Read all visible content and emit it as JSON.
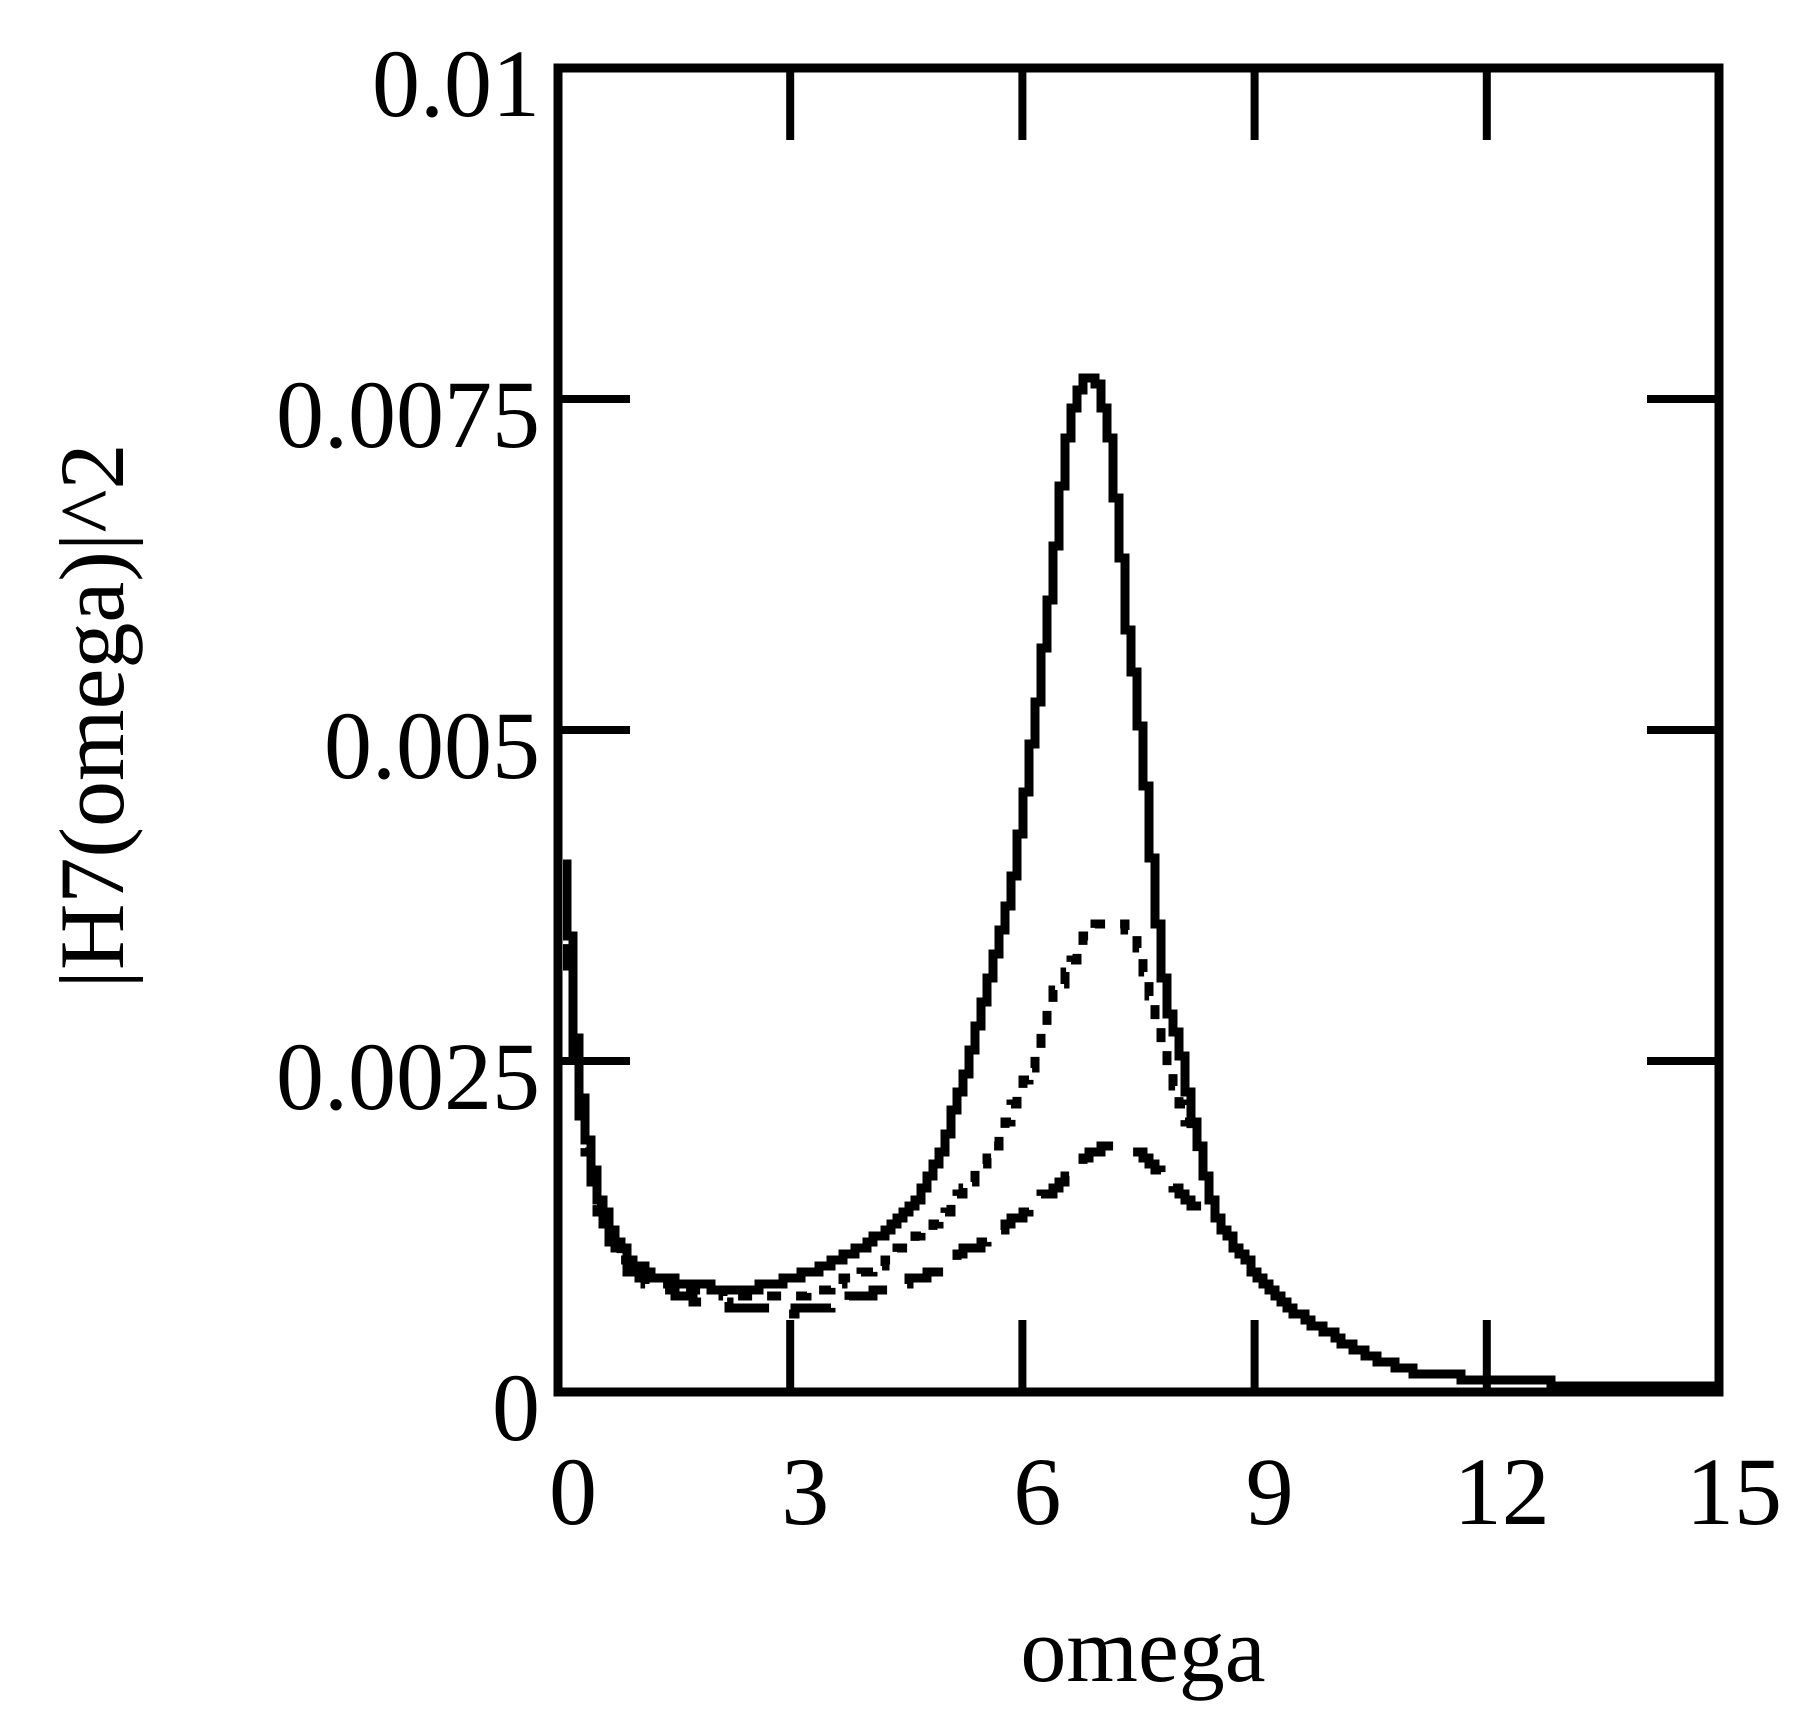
{
  "figure": {
    "background_color": "#ffffff",
    "ink_color": "#000000"
  },
  "chart_data": {
    "type": "line",
    "title": "",
    "xlabel": "omega",
    "ylabel": "|H7(omega)|^2",
    "xlim": [
      0,
      15
    ],
    "ylim": [
      0,
      0.01
    ],
    "grid": false,
    "legend_position": "none",
    "frame": "closed box with inward tick marks on all four sides",
    "x_ticks": [
      {
        "value": 0,
        "label": "0"
      },
      {
        "value": 3,
        "label": "3"
      },
      {
        "value": 6,
        "label": "6"
      },
      {
        "value": 9,
        "label": "9"
      },
      {
        "value": 12,
        "label": "12"
      },
      {
        "value": 15,
        "label": "15"
      }
    ],
    "y_ticks": [
      {
        "value": 0,
        "label": "0"
      },
      {
        "value": 0.0025,
        "label": "0.0025"
      },
      {
        "value": 0.005,
        "label": "0.005"
      },
      {
        "value": 0.0075,
        "label": "0.0075"
      },
      {
        "value": 0.01,
        "label": "0.01"
      }
    ],
    "series": [
      {
        "name": "solid-curve",
        "style": "solid",
        "points": [
          [
            0.04,
            0.004
          ],
          [
            0.08,
            0.0038
          ],
          [
            0.12,
            0.0034
          ],
          [
            0.18,
            0.0028
          ],
          [
            0.25,
            0.0023
          ],
          [
            0.35,
            0.0019
          ],
          [
            0.5,
            0.00148
          ],
          [
            0.7,
            0.00117
          ],
          [
            0.9,
            0.001
          ],
          [
            1.2,
            0.00088
          ],
          [
            1.6,
            0.00081
          ],
          [
            2.0,
            0.00079
          ],
          [
            2.5,
            0.00079
          ],
          [
            3.0,
            0.00085
          ],
          [
            3.5,
            0.00097
          ],
          [
            4.0,
            0.00113
          ],
          [
            4.3,
            0.00125
          ],
          [
            4.6,
            0.00143
          ],
          [
            4.94,
            0.00185
          ],
          [
            5.28,
            0.0025
          ],
          [
            5.62,
            0.0033
          ],
          [
            5.86,
            0.0039
          ],
          [
            6.16,
            0.0052
          ],
          [
            6.36,
            0.0062
          ],
          [
            6.52,
            0.0071
          ],
          [
            6.65,
            0.00752
          ],
          [
            6.8,
            0.00766
          ],
          [
            6.9,
            0.00766
          ],
          [
            7.0,
            0.0075
          ],
          [
            7.09,
            0.00724
          ],
          [
            7.22,
            0.00649
          ],
          [
            7.33,
            0.00573
          ],
          [
            7.45,
            0.00525
          ],
          [
            7.6,
            0.0043
          ],
          [
            7.7,
            0.0036
          ],
          [
            7.82,
            0.00296
          ],
          [
            8.04,
            0.00253
          ],
          [
            8.14,
            0.00213
          ],
          [
            8.26,
            0.00183
          ],
          [
            8.46,
            0.00132
          ],
          [
            8.68,
            0.00113
          ],
          [
            8.9,
            0.00096
          ],
          [
            9.2,
            0.00077
          ],
          [
            9.5,
            0.0006
          ],
          [
            10.0,
            0.00042
          ],
          [
            10.5,
            0.00026
          ],
          [
            11.0,
            0.00016
          ],
          [
            11.5,
            0.00012
          ],
          [
            12.0,
            0.0001
          ],
          [
            12.7,
            7e-05
          ],
          [
            13.5,
            5e-05
          ],
          [
            15.0,
            4e-05
          ]
        ]
      },
      {
        "name": "short-dash-curve",
        "style": "short-dash",
        "points": [
          [
            0.04,
            0.004
          ],
          [
            0.08,
            0.0037
          ],
          [
            0.12,
            0.0033
          ],
          [
            0.18,
            0.0027
          ],
          [
            0.25,
            0.0022
          ],
          [
            0.35,
            0.00185
          ],
          [
            0.5,
            0.00143
          ],
          [
            0.7,
            0.00112
          ],
          [
            0.9,
            0.00096
          ],
          [
            1.2,
            0.00085
          ],
          [
            1.6,
            0.00078
          ],
          [
            2.0,
            0.00075
          ],
          [
            2.5,
            0.00073
          ],
          [
            3.0,
            0.00072
          ],
          [
            3.5,
            0.0008
          ],
          [
            3.81,
            0.00087
          ],
          [
            4.2,
            0.00098
          ],
          [
            4.42,
            0.00109
          ],
          [
            4.8,
            0.00125
          ],
          [
            5.04,
            0.0014
          ],
          [
            5.3,
            0.00159
          ],
          [
            5.52,
            0.00175
          ],
          [
            5.71,
            0.00196
          ],
          [
            5.94,
            0.00228
          ],
          [
            6.14,
            0.00252
          ],
          [
            6.38,
            0.003
          ],
          [
            6.57,
            0.00321
          ],
          [
            6.74,
            0.00341
          ],
          [
            6.9,
            0.00353
          ],
          [
            7.1,
            0.00355
          ],
          [
            7.3,
            0.0035
          ],
          [
            7.45,
            0.0034
          ],
          [
            7.55,
            0.0032
          ],
          [
            7.65,
            0.00298
          ],
          [
            7.73,
            0.00272
          ],
          [
            7.84,
            0.00247
          ],
          [
            8.0,
            0.00222
          ],
          [
            8.2,
            0.00185
          ],
          [
            8.46,
            0.00132
          ],
          [
            8.68,
            0.00113
          ],
          [
            8.9,
            0.00096
          ],
          [
            9.2,
            0.00077
          ],
          [
            9.5,
            0.0006
          ],
          [
            10.0,
            0.00042
          ],
          [
            10.5,
            0.00026
          ],
          [
            11.0,
            0.00016
          ],
          [
            11.5,
            0.00012
          ],
          [
            12.0,
            0.0001
          ],
          [
            12.7,
            7e-05
          ],
          [
            13.5,
            5e-05
          ],
          [
            15.0,
            4e-05
          ]
        ]
      },
      {
        "name": "long-dash-curve",
        "style": "long-dash",
        "points": [
          [
            0.04,
            0.0039
          ],
          [
            0.08,
            0.0036
          ],
          [
            0.12,
            0.0032
          ],
          [
            0.18,
            0.0026
          ],
          [
            0.25,
            0.00215
          ],
          [
            0.35,
            0.0018
          ],
          [
            0.5,
            0.00138
          ],
          [
            0.7,
            0.00108
          ],
          [
            0.9,
            0.00092
          ],
          [
            1.2,
            0.0008
          ],
          [
            1.6,
            0.00072
          ],
          [
            2.0,
            0.00067
          ],
          [
            2.5,
            0.00063
          ],
          [
            3.0,
            0.00061
          ],
          [
            3.3,
            0.00062
          ],
          [
            3.77,
            0.00071
          ],
          [
            4.16,
            0.00076
          ],
          [
            4.42,
            0.00083
          ],
          [
            4.7,
            0.00088
          ],
          [
            5.02,
            0.00094
          ],
          [
            5.23,
            0.00107
          ],
          [
            5.49,
            0.00113
          ],
          [
            5.74,
            0.00126
          ],
          [
            5.87,
            0.0013
          ],
          [
            6.23,
            0.00147
          ],
          [
            6.49,
            0.00159
          ],
          [
            6.74,
            0.00173
          ],
          [
            6.94,
            0.00183
          ],
          [
            7.2,
            0.00186
          ],
          [
            7.5,
            0.0018
          ],
          [
            7.67,
            0.00172
          ],
          [
            7.9,
            0.00157
          ],
          [
            8.1,
            0.00146
          ],
          [
            8.3,
            0.00137
          ],
          [
            8.46,
            0.00132
          ],
          [
            8.68,
            0.00113
          ],
          [
            8.9,
            0.00096
          ],
          [
            9.2,
            0.00077
          ],
          [
            9.5,
            0.0006
          ],
          [
            10.0,
            0.00042
          ],
          [
            10.5,
            0.00026
          ],
          [
            11.0,
            0.00016
          ],
          [
            11.5,
            0.00012
          ],
          [
            12.0,
            0.0001
          ],
          [
            12.7,
            7e-05
          ],
          [
            13.5,
            5e-05
          ],
          [
            15.0,
            4e-05
          ]
        ]
      }
    ]
  }
}
